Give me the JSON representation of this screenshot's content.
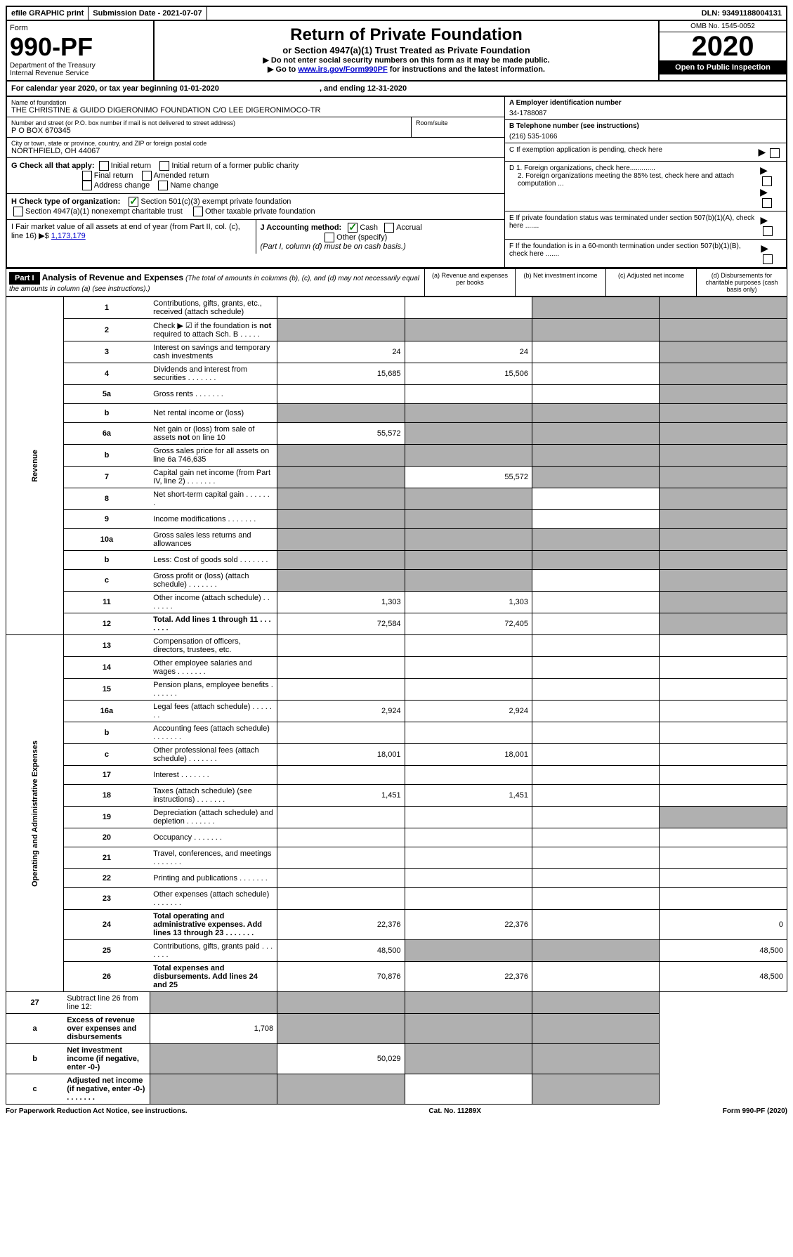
{
  "top": {
    "efile": "efile GRAPHIC print",
    "submission": "Submission Date - 2021-07-07",
    "dln": "DLN: 93491188004131"
  },
  "header": {
    "form_label": "Form",
    "form_number": "990-PF",
    "dept": "Department of the Treasury",
    "irs": "Internal Revenue Service",
    "title": "Return of Private Foundation",
    "sub": "or Section 4947(a)(1) Trust Treated as Private Foundation",
    "note1": "▶ Do not enter social security numbers on this form as it may be made public.",
    "note2_pre": "▶ Go to ",
    "note2_link": "www.irs.gov/Form990PF",
    "note2_post": " for instructions and the latest information.",
    "omb": "OMB No. 1545-0052",
    "year": "2020",
    "inspection": "Open to Public Inspection"
  },
  "calendar": {
    "text": "For calendar year 2020, or tax year beginning 01-01-2020",
    "ending": ", and ending 12-31-2020"
  },
  "info": {
    "name_label": "Name of foundation",
    "name": "THE CHRISTINE & GUIDO DIGERONIMO FOUNDATION C/O LEE DIGERONIMOCO-TR",
    "addr_label": "Number and street (or P.O. box number if mail is not delivered to street address)",
    "addr": "P O BOX 670345",
    "room_label": "Room/suite",
    "city_label": "City or town, state or province, country, and ZIP or foreign postal code",
    "city": "NORTHFIELD, OH  44067",
    "a_label": "A Employer identification number",
    "a_val": "34-1788087",
    "b_label": "B Telephone number (see instructions)",
    "b_val": "(216) 535-1066",
    "c_label": "C If exemption application is pending, check here",
    "d1": "D 1. Foreign organizations, check here.............",
    "d2": "2. Foreign organizations meeting the 85% test, check here and attach computation ...",
    "e": "E  If private foundation status was terminated under section 507(b)(1)(A), check here .......",
    "f": "F  If the foundation is in a 60-month termination under section 507(b)(1)(B), check here ......."
  },
  "checkG": {
    "label": "G Check all that apply:",
    "opts": [
      "Initial return",
      "Initial return of a former public charity",
      "Final return",
      "Amended return",
      "Address change",
      "Name change"
    ]
  },
  "checkH": {
    "label": "H Check type of organization:",
    "opt1": "Section 501(c)(3) exempt private foundation",
    "opt2": "Section 4947(a)(1) nonexempt charitable trust",
    "opt3": "Other taxable private foundation"
  },
  "checkI": {
    "label": "I Fair market value of all assets at end of year (from Part II, col. (c), line 16) ▶$ ",
    "val": "1,173,179"
  },
  "checkJ": {
    "label": "J Accounting method:",
    "cash": "Cash",
    "accrual": "Accrual",
    "other": "Other (specify)",
    "note": "(Part I, column (d) must be on cash basis.)"
  },
  "part1": {
    "partLabel": "Part I",
    "title": "Analysis of Revenue and Expenses",
    "sub": "(The total of amounts in columns (b), (c), and (d) may not necessarily equal the amounts in column (a) (see instructions).)",
    "colA": "(a)   Revenue and expenses per books",
    "colB": "(b)  Net investment income",
    "colC": "(c)  Adjusted net income",
    "colD": "(d)  Disbursements for charitable purposes (cash basis only)",
    "revenueLabel": "Revenue",
    "expenseLabel": "Operating and Administrative Expenses"
  },
  "lines": [
    {
      "n": "1",
      "d": "Contributions, gifts, grants, etc., received (attach schedule)",
      "a": "",
      "b": "",
      "c": "s",
      "dS": "s"
    },
    {
      "n": "2",
      "d": "Check ▶ ☑ if the foundation is not required to attach Sch. B",
      "dots": true,
      "a": "s",
      "b": "s",
      "c": "s",
      "dS": "s"
    },
    {
      "n": "3",
      "d": "Interest on savings and temporary cash investments",
      "a": "24",
      "b": "24",
      "c": "",
      "dS": "s"
    },
    {
      "n": "4",
      "d": "Dividends and interest from securities",
      "dots": true,
      "a": "15,685",
      "b": "15,506",
      "c": "",
      "dS": "s"
    },
    {
      "n": "5a",
      "d": "Gross rents",
      "dots": true,
      "a": "",
      "b": "",
      "c": "",
      "dS": "s"
    },
    {
      "n": "b",
      "d": "Net rental income or (loss)",
      "underline": true,
      "a": "s",
      "b": "s",
      "c": "s",
      "dS": "s"
    },
    {
      "n": "6a",
      "d": "Net gain or (loss) from sale of assets not on line 10",
      "a": "55,572",
      "b": "s",
      "c": "s",
      "dS": "s"
    },
    {
      "n": "b",
      "d": "Gross sales price for all assets on line 6a",
      "val": "746,635",
      "a": "s",
      "b": "s",
      "c": "s",
      "dS": "s"
    },
    {
      "n": "7",
      "d": "Capital gain net income (from Part IV, line 2)",
      "dots": true,
      "a": "s",
      "b": "55,572",
      "c": "s",
      "dS": "s"
    },
    {
      "n": "8",
      "d": "Net short-term capital gain",
      "dots": true,
      "a": "s",
      "b": "s",
      "c": "",
      "dS": "s"
    },
    {
      "n": "9",
      "d": "Income modifications",
      "dots": true,
      "a": "s",
      "b": "s",
      "c": "",
      "dS": "s"
    },
    {
      "n": "10a",
      "d": "Gross sales less returns and allowances",
      "underline": true,
      "a": "s",
      "b": "s",
      "c": "s",
      "dS": "s"
    },
    {
      "n": "b",
      "d": "Less: Cost of goods sold",
      "dots": true,
      "underline": true,
      "a": "s",
      "b": "s",
      "c": "s",
      "dS": "s"
    },
    {
      "n": "c",
      "d": "Gross profit or (loss) (attach schedule)",
      "dots": true,
      "a": "s",
      "b": "s",
      "c": "",
      "dS": "s"
    },
    {
      "n": "11",
      "d": "Other income (attach schedule)",
      "dots": true,
      "a": "1,303",
      "b": "1,303",
      "c": "",
      "dS": "s"
    },
    {
      "n": "12",
      "d": "Total. Add lines 1 through 11",
      "dots": true,
      "bold": true,
      "a": "72,584",
      "b": "72,405",
      "c": "",
      "dS": "s"
    }
  ],
  "expLines": [
    {
      "n": "13",
      "d": "Compensation of officers, directors, trustees, etc.",
      "a": "",
      "b": "",
      "c": "",
      "dS": ""
    },
    {
      "n": "14",
      "d": "Other employee salaries and wages",
      "dots": true,
      "a": "",
      "b": "",
      "c": "",
      "dS": ""
    },
    {
      "n": "15",
      "d": "Pension plans, employee benefits",
      "dots": true,
      "a": "",
      "b": "",
      "c": "",
      "dS": ""
    },
    {
      "n": "16a",
      "d": "Legal fees (attach schedule)",
      "dots": true,
      "a": "2,924",
      "b": "2,924",
      "c": "",
      "dS": ""
    },
    {
      "n": "b",
      "d": "Accounting fees (attach schedule)",
      "dots": true,
      "a": "",
      "b": "",
      "c": "",
      "dS": ""
    },
    {
      "n": "c",
      "d": "Other professional fees (attach schedule)",
      "dots": true,
      "a": "18,001",
      "b": "18,001",
      "c": "",
      "dS": ""
    },
    {
      "n": "17",
      "d": "Interest",
      "dots": true,
      "a": "",
      "b": "",
      "c": "",
      "dS": ""
    },
    {
      "n": "18",
      "d": "Taxes (attach schedule) (see instructions)",
      "dots": true,
      "a": "1,451",
      "b": "1,451",
      "c": "",
      "dS": ""
    },
    {
      "n": "19",
      "d": "Depreciation (attach schedule) and depletion",
      "dots": true,
      "a": "",
      "b": "",
      "c": "",
      "dS": "s"
    },
    {
      "n": "20",
      "d": "Occupancy",
      "dots": true,
      "a": "",
      "b": "",
      "c": "",
      "dS": ""
    },
    {
      "n": "21",
      "d": "Travel, conferences, and meetings",
      "dots": true,
      "a": "",
      "b": "",
      "c": "",
      "dS": ""
    },
    {
      "n": "22",
      "d": "Printing and publications",
      "dots": true,
      "a": "",
      "b": "",
      "c": "",
      "dS": ""
    },
    {
      "n": "23",
      "d": "Other expenses (attach schedule)",
      "dots": true,
      "a": "",
      "b": "",
      "c": "",
      "dS": ""
    },
    {
      "n": "24",
      "d": "Total operating and administrative expenses. Add lines 13 through 23",
      "dots": true,
      "bold": true,
      "a": "22,376",
      "b": "22,376",
      "c": "",
      "dS": "0"
    },
    {
      "n": "25",
      "d": "Contributions, gifts, grants paid",
      "dots": true,
      "a": "48,500",
      "b": "s",
      "c": "s",
      "dS": "48,500"
    },
    {
      "n": "26",
      "d": "Total expenses and disbursements. Add lines 24 and 25",
      "bold": true,
      "a": "70,876",
      "b": "22,376",
      "c": "",
      "dS": "48,500"
    }
  ],
  "bottomLines": [
    {
      "n": "27",
      "d": "Subtract line 26 from line 12:",
      "a": "s",
      "b": "s",
      "c": "s",
      "dS": "s"
    },
    {
      "n": "a",
      "d": "Excess of revenue over expenses and disbursements",
      "bold": true,
      "a": "1,708",
      "b": "s",
      "c": "s",
      "dS": "s"
    },
    {
      "n": "b",
      "d": "Net investment income (if negative, enter -0-)",
      "bold": true,
      "a": "s",
      "b": "50,029",
      "c": "s",
      "dS": "s"
    },
    {
      "n": "c",
      "d": "Adjusted net income (if negative, enter -0-)",
      "bold": true,
      "dots": true,
      "a": "s",
      "b": "s",
      "c": "",
      "dS": "s"
    }
  ],
  "footer": {
    "left": "For Paperwork Reduction Act Notice, see instructions.",
    "center": "Cat. No. 11289X",
    "right": "Form 990-PF (2020)"
  }
}
